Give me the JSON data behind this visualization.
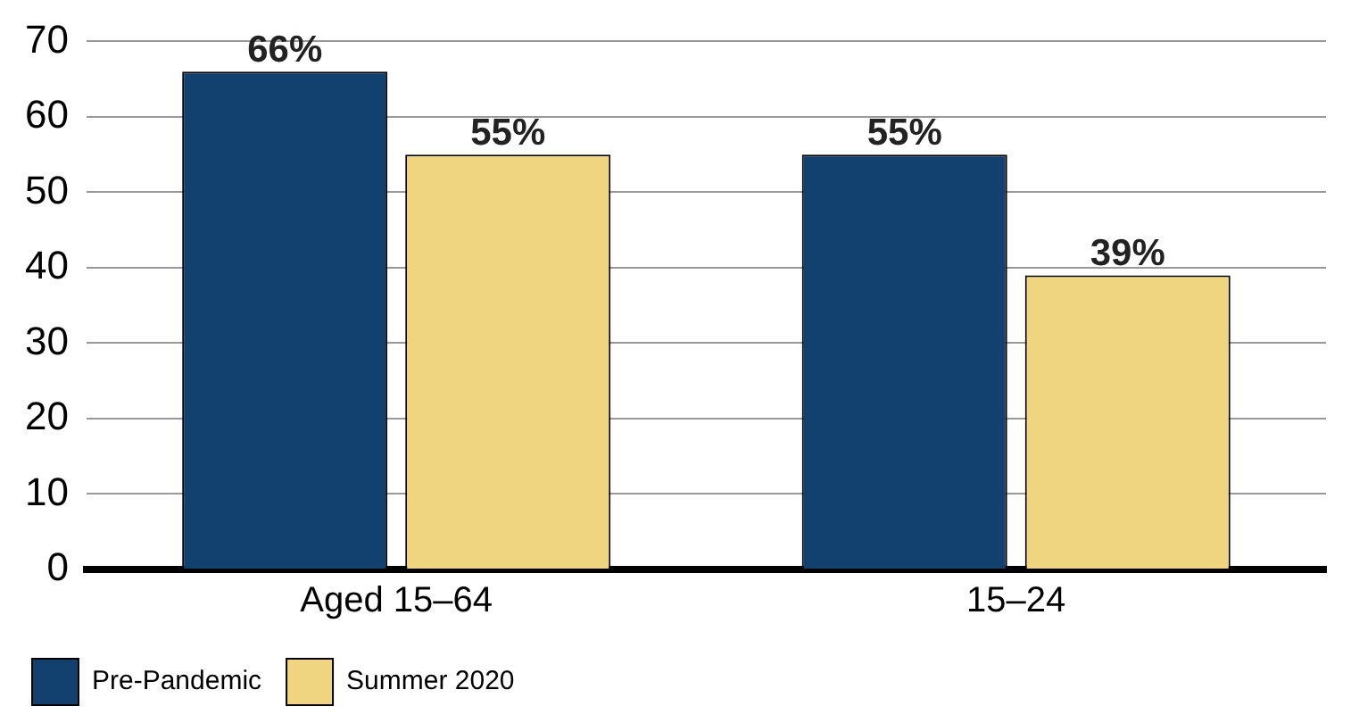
{
  "chart_data": {
    "type": "bar",
    "categories": [
      "Aged 15–64",
      "15–24"
    ],
    "series": [
      {
        "name": "Pre-Pandemic",
        "color": "#12416f",
        "values": [
          66,
          55
        ],
        "value_labels": [
          "66%",
          "55%"
        ]
      },
      {
        "name": "Summer 2020",
        "color": "#f0d580",
        "values": [
          55,
          39
        ],
        "value_labels": [
          "55%",
          "39%"
        ]
      }
    ],
    "ylim": [
      0,
      70
    ],
    "yticks": [
      0,
      10,
      20,
      30,
      40,
      50,
      60,
      70
    ],
    "grid": "y",
    "legend": "bottom"
  }
}
